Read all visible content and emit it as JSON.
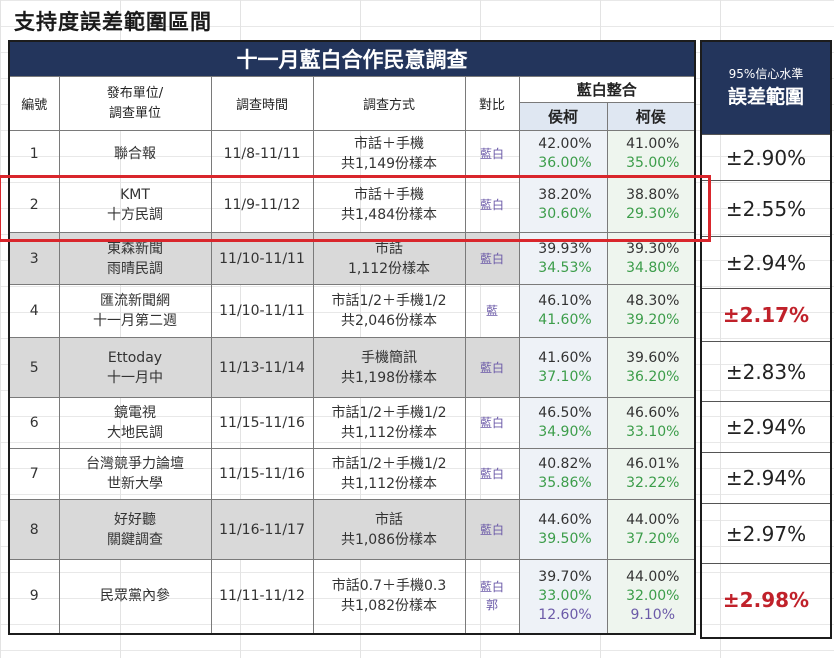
{
  "title": "支持度誤差範圍區間",
  "table": {
    "banner": "十一月藍白合作民意調查",
    "headers": {
      "num": "編號",
      "org": "發布單位/\n調查單位",
      "org_line1": "發布單位/",
      "org_line2": "調查單位",
      "date": "調查時間",
      "method": "調查方式",
      "compare": "對比",
      "merge": "藍白整合",
      "sub1": "侯柯",
      "sub2": "柯侯"
    },
    "rows": [
      {
        "num": "1",
        "org": [
          "聯合報"
        ],
        "date": "11/8-11/11",
        "method": [
          "市話＋手機",
          "共1,149份樣本"
        ],
        "cmp": [
          "藍白"
        ],
        "v1": [
          "42.00%",
          "36.00%"
        ],
        "v2": [
          "41.00%",
          "35.00%"
        ],
        "moe": "±2.90%",
        "red": false,
        "grey": false
      },
      {
        "num": "2",
        "org": [
          "KMT",
          "十方民調"
        ],
        "date": "11/9-11/12",
        "method": [
          "市話＋手機",
          "共1,484份樣本"
        ],
        "cmp": [
          "藍白"
        ],
        "v1": [
          "38.20%",
          "30.60%"
        ],
        "v2": [
          "38.80%",
          "29.30%"
        ],
        "moe": "±2.55%",
        "red": false,
        "grey": false
      },
      {
        "num": "3",
        "org": [
          "東森新聞",
          "雨晴民調"
        ],
        "date": "11/10-11/11",
        "method": [
          "市話",
          "1,112份樣本"
        ],
        "cmp": [
          "藍白"
        ],
        "v1": [
          "39.93%",
          "34.53%"
        ],
        "v2": [
          "39.30%",
          "34.80%"
        ],
        "moe": "±2.94%",
        "red": false,
        "grey": true
      },
      {
        "num": "4",
        "org": [
          "匯流新聞網",
          "十一月第二週"
        ],
        "date": "11/10-11/11",
        "method": [
          "市話1/2＋手機1/2",
          "共2,046份樣本"
        ],
        "cmp": [
          "藍"
        ],
        "v1": [
          "46.10%",
          "41.60%"
        ],
        "v2": [
          "48.30%",
          "39.20%"
        ],
        "moe": "±2.17%",
        "red": true,
        "grey": false
      },
      {
        "num": "5",
        "org": [
          "Ettoday",
          "十一月中"
        ],
        "date": "11/13-11/14",
        "method": [
          "手機簡訊",
          "共1,198份樣本"
        ],
        "cmp": [
          "藍白"
        ],
        "v1": [
          "41.60%",
          "37.10%"
        ],
        "v2": [
          "39.60%",
          "36.20%"
        ],
        "moe": "±2.83%",
        "red": false,
        "grey": true
      },
      {
        "num": "6",
        "org": [
          "鏡電視",
          "大地民調"
        ],
        "date": "11/15-11/16",
        "method": [
          "市話1/2＋手機1/2",
          "共1,112份樣本"
        ],
        "cmp": [
          "藍白"
        ],
        "v1": [
          "46.50%",
          "34.90%"
        ],
        "v2": [
          "46.60%",
          "33.10%"
        ],
        "moe": "±2.94%",
        "red": false,
        "grey": false
      },
      {
        "num": "7",
        "org": [
          "台灣競爭力論壇",
          "世新大學"
        ],
        "date": "11/15-11/16",
        "method": [
          "市話1/2＋手機1/2",
          "共1,112份樣本"
        ],
        "cmp": [
          "藍白"
        ],
        "v1": [
          "40.82%",
          "35.86%"
        ],
        "v2": [
          "46.01%",
          "32.22%"
        ],
        "moe": "±2.94%",
        "red": false,
        "grey": false
      },
      {
        "num": "8",
        "org": [
          "好好聽",
          "關鍵調查"
        ],
        "date": "11/16-11/17",
        "method": [
          "市話",
          "共1,086份樣本"
        ],
        "cmp": [
          "藍白"
        ],
        "v1": [
          "44.60%",
          "39.50%"
        ],
        "v2": [
          "44.00%",
          "37.20%"
        ],
        "moe": "±2.97%",
        "red": false,
        "grey": true
      },
      {
        "num": "9",
        "org": [
          "民眾黨內參"
        ],
        "date": "11/11-11/12",
        "method": [
          "市話0.7＋手機0.3",
          "共1,082份樣本"
        ],
        "cmp": [
          "藍白",
          "郭"
        ],
        "v1": [
          "39.70%",
          "33.00%",
          "12.60%"
        ],
        "v2": [
          "44.00%",
          "32.00%",
          "9.10%"
        ],
        "moe": "±2.98%",
        "red": true,
        "grey": false
      }
    ]
  },
  "side": {
    "header_line1": "95%信心水準",
    "header_line2": "誤差範圍"
  },
  "colors": {
    "banner": "#23355c",
    "red": "#c0212a",
    "green": "#3c9d4a",
    "purple": "#6b5aa8",
    "highlight": "#d9262c"
  }
}
